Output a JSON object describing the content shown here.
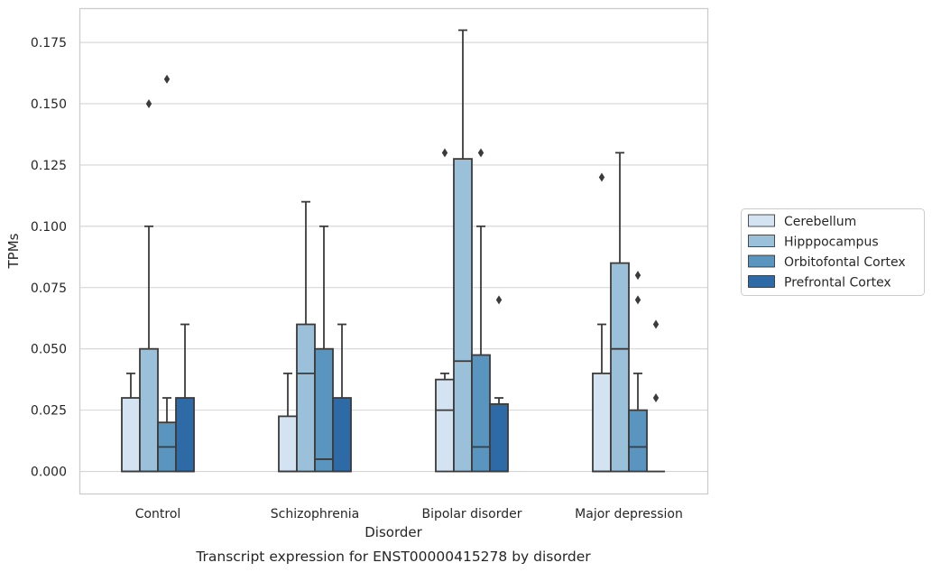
{
  "caption": "Transcript expression for ENST00000415278 by disorder",
  "chart_data": {
    "type": "box",
    "title": "",
    "xlabel": "Disorder",
    "ylabel": "TPMs",
    "ylim": [
      -0.009,
      0.189
    ],
    "yticks": [
      0.0,
      0.025,
      0.05,
      0.075,
      0.1,
      0.125,
      0.15,
      0.175
    ],
    "ytick_labels": [
      "0.000",
      "0.025",
      "0.050",
      "0.075",
      "0.100",
      "0.125",
      "0.150",
      "0.175"
    ],
    "grid": "horizontal",
    "legend_position": "right",
    "categories": [
      "Control",
      "Schizophrenia",
      "Bipolar disorder",
      "Major depression"
    ],
    "series": [
      {
        "name": "Cerebellum",
        "color": "#d3e3f1",
        "boxes": [
          {
            "min": 0.0,
            "q1": 0.0,
            "median": 0.0,
            "q3": 0.03,
            "max": 0.04,
            "outliers": []
          },
          {
            "min": 0.0,
            "q1": 0.0,
            "median": 0.0,
            "q3": 0.0225,
            "max": 0.04,
            "outliers": []
          },
          {
            "min": 0.0,
            "q1": 0.0,
            "median": 0.025,
            "q3": 0.0375,
            "max": 0.04,
            "outliers": [
              0.13
            ]
          },
          {
            "min": 0.0,
            "q1": 0.0,
            "median": 0.0,
            "q3": 0.04,
            "max": 0.06,
            "outliers": [
              0.12
            ]
          }
        ]
      },
      {
        "name": "Hipppocampus",
        "color": "#9bc1da",
        "boxes": [
          {
            "min": 0.0,
            "q1": 0.0,
            "median": 0.0,
            "q3": 0.05,
            "max": 0.1,
            "outliers": [
              0.15
            ]
          },
          {
            "min": 0.0,
            "q1": 0.0,
            "median": 0.04,
            "q3": 0.06,
            "max": 0.11,
            "outliers": []
          },
          {
            "min": 0.0,
            "q1": 0.0,
            "median": 0.045,
            "q3": 0.1275,
            "max": 0.18,
            "outliers": []
          },
          {
            "min": 0.0,
            "q1": 0.0,
            "median": 0.05,
            "q3": 0.085,
            "max": 0.13,
            "outliers": []
          }
        ]
      },
      {
        "name": "Orbitofontal Cortex",
        "color": "#5a95c0",
        "boxes": [
          {
            "min": 0.0,
            "q1": 0.0,
            "median": 0.01,
            "q3": 0.02,
            "max": 0.03,
            "outliers": [
              0.16
            ]
          },
          {
            "min": 0.0,
            "q1": 0.0,
            "median": 0.005,
            "q3": 0.05,
            "max": 0.1,
            "outliers": []
          },
          {
            "min": 0.0,
            "q1": 0.0,
            "median": 0.01,
            "q3": 0.0475,
            "max": 0.1,
            "outliers": [
              0.13
            ]
          },
          {
            "min": 0.0,
            "q1": 0.0,
            "median": 0.01,
            "q3": 0.025,
            "max": 0.04,
            "outliers": [
              0.08,
              0.07
            ]
          }
        ]
      },
      {
        "name": "Prefrontal Cortex",
        "color": "#2e6aa5",
        "boxes": [
          {
            "min": 0.0,
            "q1": 0.0,
            "median": 0.0,
            "q3": 0.03,
            "max": 0.06,
            "outliers": []
          },
          {
            "min": 0.0,
            "q1": 0.0,
            "median": 0.0,
            "q3": 0.03,
            "max": 0.06,
            "outliers": []
          },
          {
            "min": 0.0,
            "q1": 0.0,
            "median": 0.0,
            "q3": 0.0275,
            "max": 0.03,
            "outliers": [
              0.07
            ]
          },
          {
            "min": 0.0,
            "q1": 0.0,
            "median": 0.0,
            "q3": 0.0,
            "max": 0.0,
            "outliers": [
              0.06,
              0.03
            ]
          }
        ]
      }
    ]
  }
}
